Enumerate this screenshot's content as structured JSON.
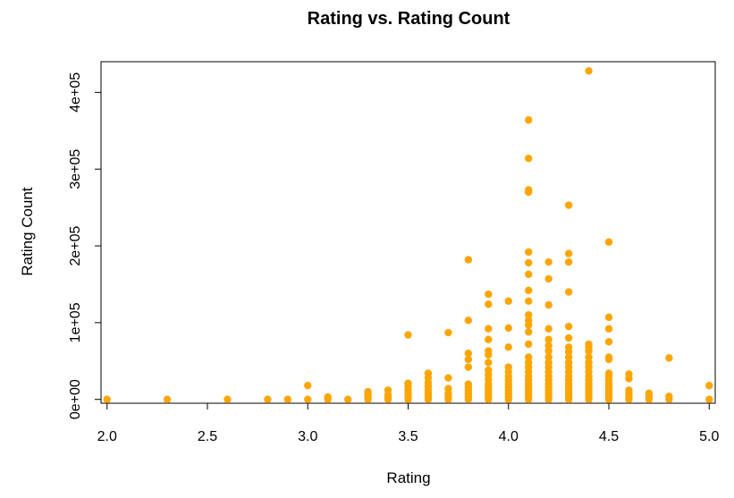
{
  "chart_data": {
    "type": "scatter",
    "title": "Rating vs. Rating Count",
    "xlabel": "Rating",
    "ylabel": "Rating Count",
    "xlim": [
      1.97,
      5.03
    ],
    "ylim": [
      -5000,
      440000
    ],
    "x_ticks": [
      2.0,
      2.5,
      3.0,
      3.5,
      4.0,
      4.5,
      5.0
    ],
    "x_tick_labels": [
      "2.0",
      "2.5",
      "3.0",
      "3.5",
      "4.0",
      "4.5",
      "5.0"
    ],
    "y_ticks": [
      0,
      100000,
      200000,
      300000,
      400000
    ],
    "y_tick_labels": [
      "0e+00",
      "1e+05",
      "2e+05",
      "3e+05",
      "4e+05"
    ],
    "grid": false,
    "point_color": "#FFA500",
    "points": [
      [
        2.0,
        0
      ],
      [
        2.3,
        0
      ],
      [
        2.6,
        0
      ],
      [
        2.8,
        0
      ],
      [
        2.9,
        0
      ],
      [
        3.0,
        0
      ],
      [
        3.0,
        18000
      ],
      [
        3.1,
        0
      ],
      [
        3.1,
        3000
      ],
      [
        3.2,
        0
      ],
      [
        3.3,
        0
      ],
      [
        3.3,
        3000
      ],
      [
        3.3,
        6000
      ],
      [
        3.3,
        10000
      ],
      [
        3.4,
        0
      ],
      [
        3.4,
        3000
      ],
      [
        3.4,
        6000
      ],
      [
        3.4,
        12000
      ],
      [
        3.5,
        0
      ],
      [
        3.5,
        4000
      ],
      [
        3.5,
        8000
      ],
      [
        3.5,
        12000
      ],
      [
        3.5,
        17000
      ],
      [
        3.5,
        21000
      ],
      [
        3.5,
        84000
      ],
      [
        3.6,
        0
      ],
      [
        3.6,
        4000
      ],
      [
        3.6,
        8000
      ],
      [
        3.6,
        12000
      ],
      [
        3.6,
        17000
      ],
      [
        3.6,
        22000
      ],
      [
        3.6,
        28000
      ],
      [
        3.6,
        34000
      ],
      [
        3.7,
        0
      ],
      [
        3.7,
        4000
      ],
      [
        3.7,
        8000
      ],
      [
        3.7,
        14000
      ],
      [
        3.7,
        28000
      ],
      [
        3.7,
        87000
      ],
      [
        3.8,
        0
      ],
      [
        3.8,
        4000
      ],
      [
        3.8,
        8000
      ],
      [
        3.8,
        12000
      ],
      [
        3.8,
        16000
      ],
      [
        3.8,
        20000
      ],
      [
        3.8,
        42000
      ],
      [
        3.8,
        52000
      ],
      [
        3.8,
        60000
      ],
      [
        3.8,
        103000
      ],
      [
        3.8,
        182000
      ],
      [
        3.9,
        0
      ],
      [
        3.9,
        4000
      ],
      [
        3.9,
        8000
      ],
      [
        3.9,
        12000
      ],
      [
        3.9,
        16000
      ],
      [
        3.9,
        20000
      ],
      [
        3.9,
        26000
      ],
      [
        3.9,
        32000
      ],
      [
        3.9,
        38000
      ],
      [
        3.9,
        48000
      ],
      [
        3.9,
        58000
      ],
      [
        3.9,
        63000
      ],
      [
        3.9,
        78000
      ],
      [
        3.9,
        92000
      ],
      [
        3.9,
        124000
      ],
      [
        3.9,
        137000
      ],
      [
        4.0,
        0
      ],
      [
        4.0,
        4000
      ],
      [
        4.0,
        8000
      ],
      [
        4.0,
        12000
      ],
      [
        4.0,
        16000
      ],
      [
        4.0,
        20000
      ],
      [
        4.0,
        25000
      ],
      [
        4.0,
        30000
      ],
      [
        4.0,
        36000
      ],
      [
        4.0,
        42000
      ],
      [
        4.0,
        68000
      ],
      [
        4.0,
        93000
      ],
      [
        4.0,
        128000
      ],
      [
        4.1,
        0
      ],
      [
        4.1,
        4000
      ],
      [
        4.1,
        8000
      ],
      [
        4.1,
        12000
      ],
      [
        4.1,
        16000
      ],
      [
        4.1,
        20000
      ],
      [
        4.1,
        25000
      ],
      [
        4.1,
        30000
      ],
      [
        4.1,
        36000
      ],
      [
        4.1,
        42000
      ],
      [
        4.1,
        48000
      ],
      [
        4.1,
        55000
      ],
      [
        4.1,
        72000
      ],
      [
        4.1,
        88000
      ],
      [
        4.1,
        97000
      ],
      [
        4.1,
        103000
      ],
      [
        4.1,
        110000
      ],
      [
        4.1,
        128000
      ],
      [
        4.1,
        142000
      ],
      [
        4.1,
        163000
      ],
      [
        4.1,
        178000
      ],
      [
        4.1,
        192000
      ],
      [
        4.1,
        270000
      ],
      [
        4.1,
        273000
      ],
      [
        4.1,
        314000
      ],
      [
        4.1,
        364000
      ],
      [
        4.2,
        0
      ],
      [
        4.2,
        4000
      ],
      [
        4.2,
        8000
      ],
      [
        4.2,
        12000
      ],
      [
        4.2,
        16000
      ],
      [
        4.2,
        20000
      ],
      [
        4.2,
        25000
      ],
      [
        4.2,
        30000
      ],
      [
        4.2,
        36000
      ],
      [
        4.2,
        42000
      ],
      [
        4.2,
        48000
      ],
      [
        4.2,
        55000
      ],
      [
        4.2,
        63000
      ],
      [
        4.2,
        70000
      ],
      [
        4.2,
        78000
      ],
      [
        4.2,
        92000
      ],
      [
        4.2,
        123000
      ],
      [
        4.2,
        157000
      ],
      [
        4.2,
        179000
      ],
      [
        4.3,
        0
      ],
      [
        4.3,
        4000
      ],
      [
        4.3,
        8000
      ],
      [
        4.3,
        12000
      ],
      [
        4.3,
        16000
      ],
      [
        4.3,
        20000
      ],
      [
        4.3,
        25000
      ],
      [
        4.3,
        30000
      ],
      [
        4.3,
        36000
      ],
      [
        4.3,
        42000
      ],
      [
        4.3,
        48000
      ],
      [
        4.3,
        55000
      ],
      [
        4.3,
        62000
      ],
      [
        4.3,
        68000
      ],
      [
        4.3,
        80000
      ],
      [
        4.3,
        95000
      ],
      [
        4.3,
        140000
      ],
      [
        4.3,
        179000
      ],
      [
        4.3,
        190000
      ],
      [
        4.3,
        253000
      ],
      [
        4.4,
        0
      ],
      [
        4.4,
        4000
      ],
      [
        4.4,
        8000
      ],
      [
        4.4,
        12000
      ],
      [
        4.4,
        16000
      ],
      [
        4.4,
        20000
      ],
      [
        4.4,
        25000
      ],
      [
        4.4,
        30000
      ],
      [
        4.4,
        36000
      ],
      [
        4.4,
        42000
      ],
      [
        4.4,
        48000
      ],
      [
        4.4,
        55000
      ],
      [
        4.4,
        63000
      ],
      [
        4.4,
        68000
      ],
      [
        4.4,
        72000
      ],
      [
        4.4,
        428000
      ],
      [
        4.5,
        0
      ],
      [
        4.5,
        4000
      ],
      [
        4.5,
        8000
      ],
      [
        4.5,
        12000
      ],
      [
        4.5,
        16000
      ],
      [
        4.5,
        20000
      ],
      [
        4.5,
        25000
      ],
      [
        4.5,
        30000
      ],
      [
        4.5,
        34000
      ],
      [
        4.5,
        52000
      ],
      [
        4.5,
        55000
      ],
      [
        4.5,
        75000
      ],
      [
        4.5,
        92000
      ],
      [
        4.5,
        107000
      ],
      [
        4.5,
        205000
      ],
      [
        4.6,
        0
      ],
      [
        4.6,
        4000
      ],
      [
        4.6,
        8000
      ],
      [
        4.6,
        12000
      ],
      [
        4.6,
        27000
      ],
      [
        4.6,
        33000
      ],
      [
        4.7,
        0
      ],
      [
        4.7,
        4000
      ],
      [
        4.7,
        8000
      ],
      [
        4.8,
        0
      ],
      [
        4.8,
        4000
      ],
      [
        4.8,
        54000
      ],
      [
        5.0,
        0
      ],
      [
        5.0,
        18000
      ]
    ]
  }
}
